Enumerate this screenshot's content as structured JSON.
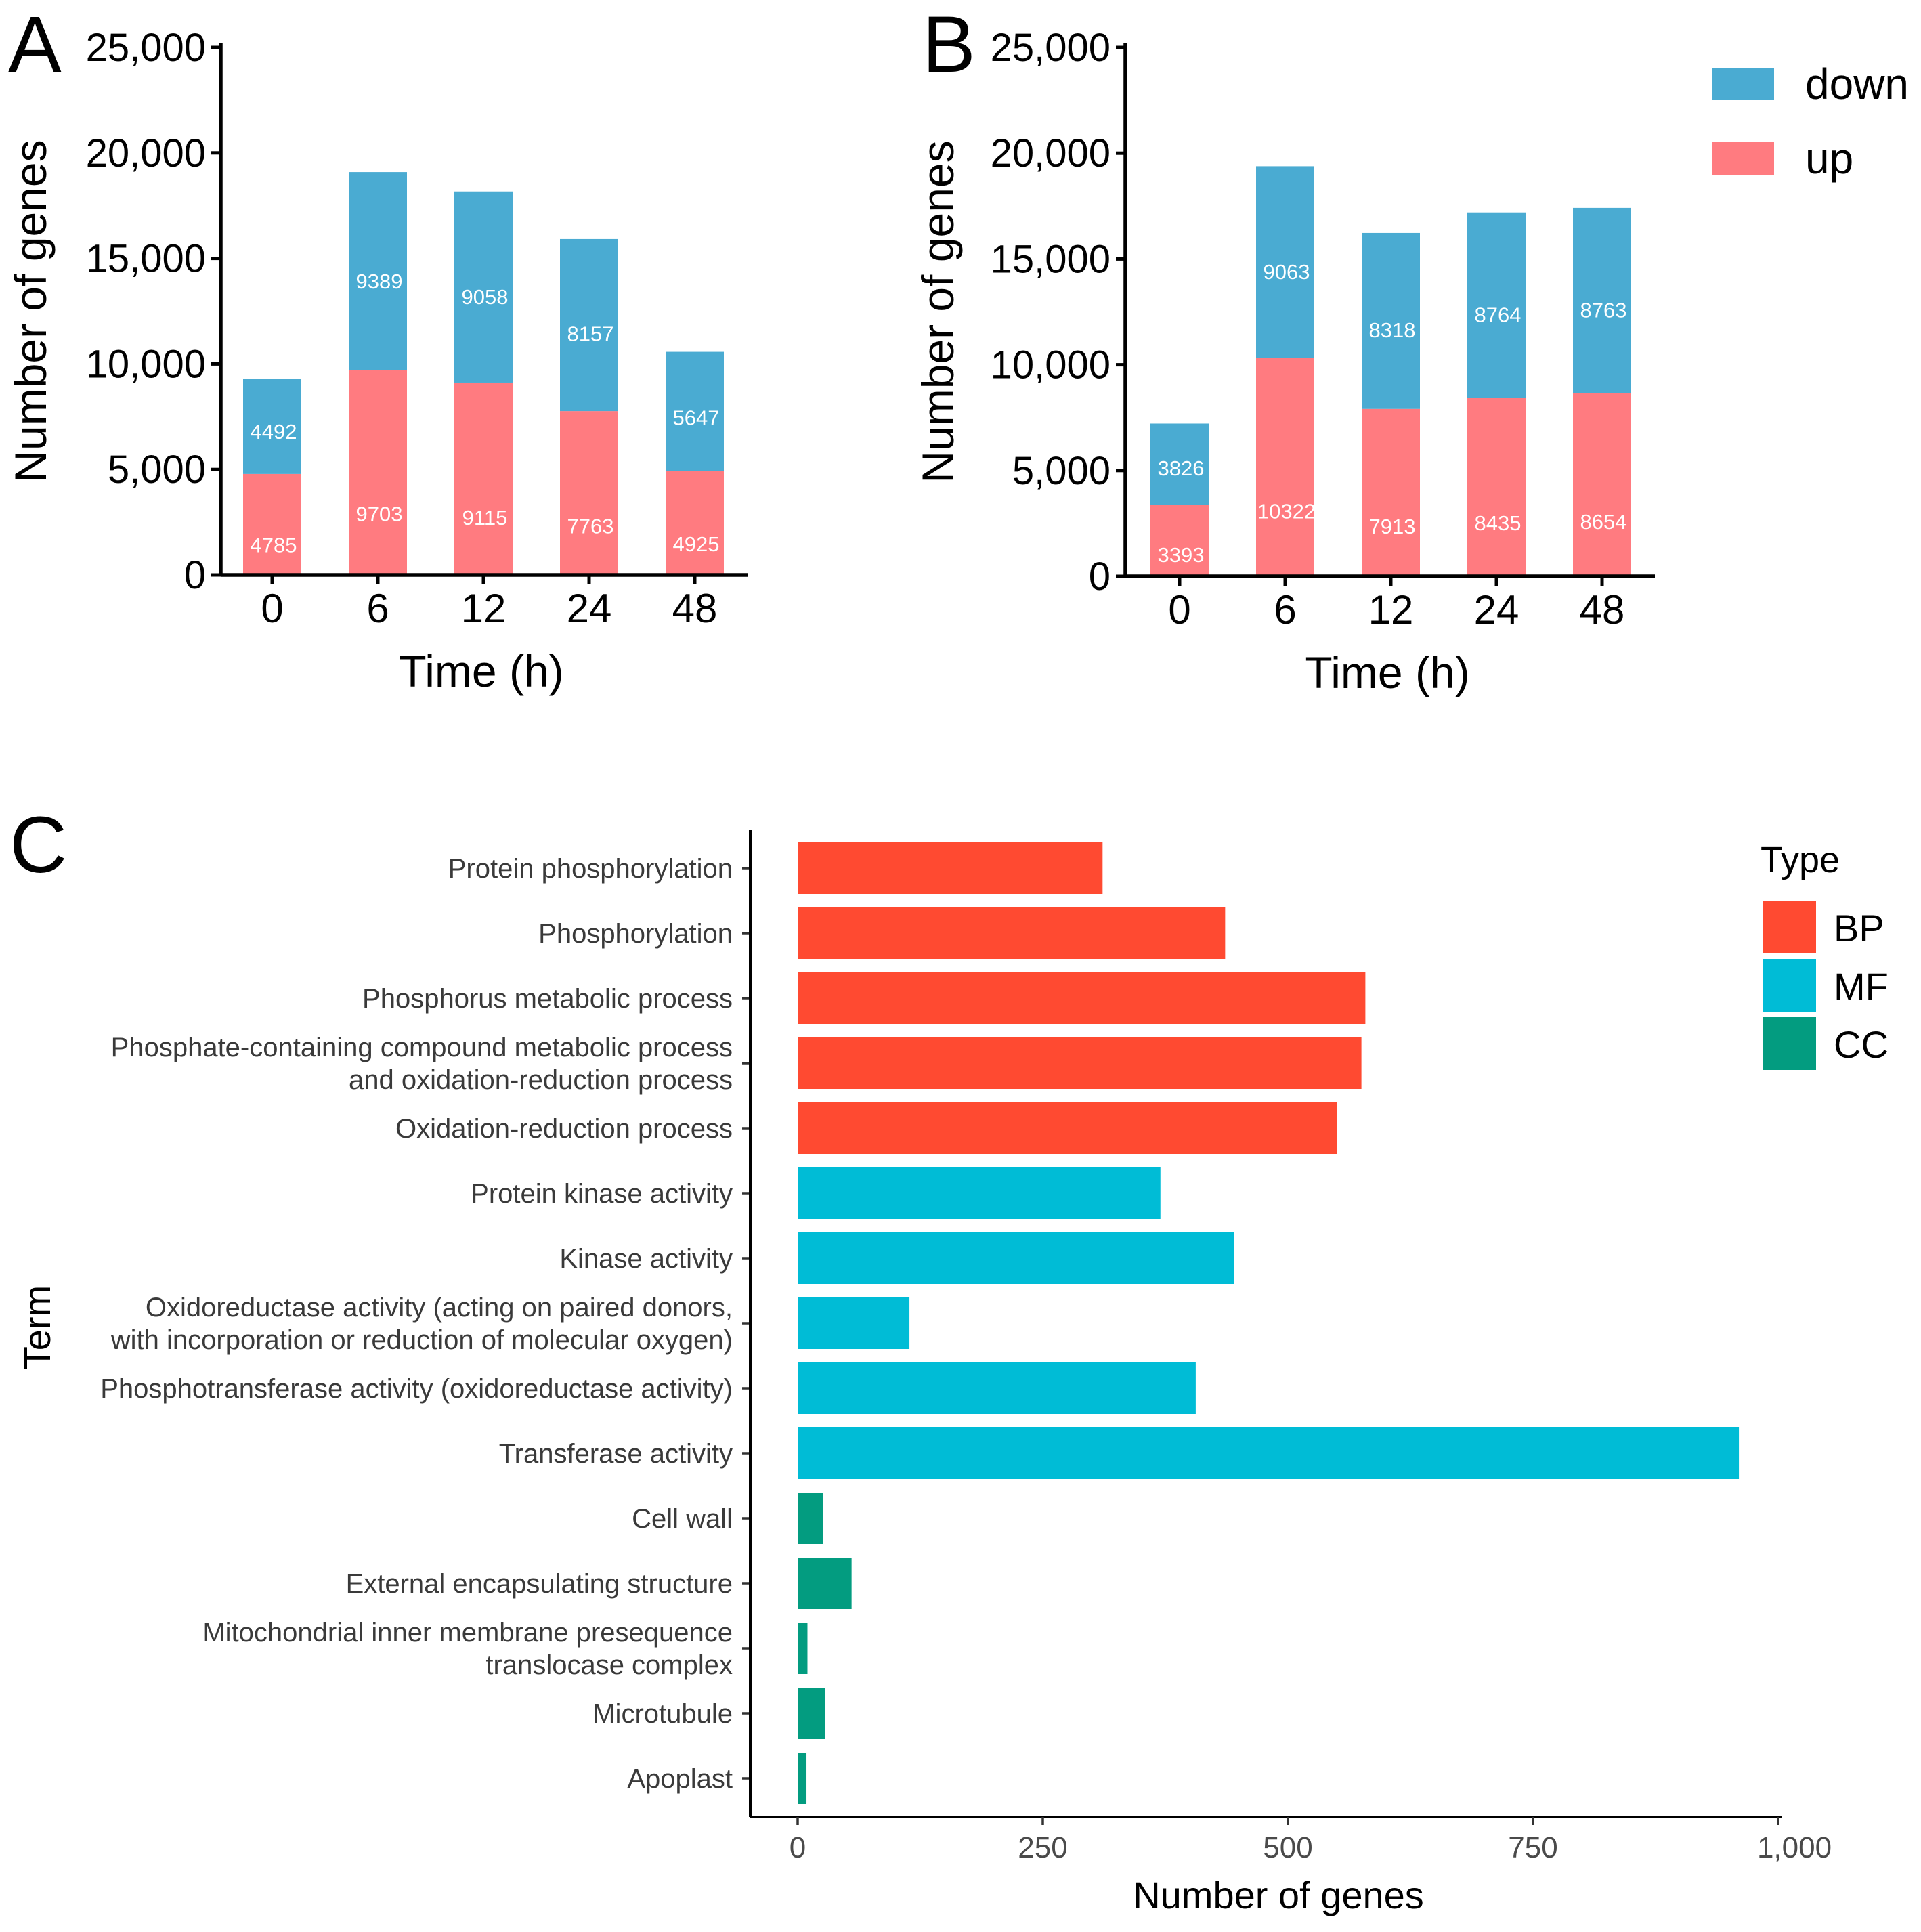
{
  "chart_data": [
    {
      "panel": "A",
      "type": "bar",
      "stacked": true,
      "categories": [
        "0",
        "6",
        "12",
        "24",
        "48"
      ],
      "series": [
        {
          "name": "up",
          "color": "#ff7b80",
          "values": [
            4785,
            9703,
            9115,
            7763,
            4925
          ]
        },
        {
          "name": "down",
          "color": "#4aabd2",
          "values": [
            4492,
            9389,
            9058,
            8157,
            5647
          ]
        }
      ],
      "ylim": [
        0,
        25000
      ],
      "yticks": [
        0,
        5000,
        10000,
        15000,
        20000,
        25000
      ],
      "ytick_labels": [
        "0",
        "5,000",
        "10,000",
        "15,000",
        "20,000",
        "25,000"
      ],
      "xlabel": "Time (h)",
      "ylabel": "Number of genes"
    },
    {
      "panel": "B",
      "type": "bar",
      "stacked": true,
      "categories": [
        "0",
        "6",
        "12",
        "24",
        "48"
      ],
      "series": [
        {
          "name": "up",
          "color": "#ff7b80",
          "values": [
            3393,
            10322,
            7913,
            8435,
            8654
          ]
        },
        {
          "name": "down",
          "color": "#4aabd2",
          "values": [
            3826,
            9063,
            8318,
            8764,
            8763
          ]
        }
      ],
      "ylim": [
        0,
        25000
      ],
      "yticks": [
        0,
        5000,
        10000,
        15000,
        20000,
        25000
      ],
      "ytick_labels": [
        "0",
        "5,000",
        "10,000",
        "15,000",
        "20,000",
        "25,000"
      ],
      "xlabel": "Time (h)",
      "ylabel": "Number of genes",
      "legend": {
        "placement": "top-right",
        "items": [
          {
            "name": "down",
            "color": "#4aabd2"
          },
          {
            "name": "up",
            "color": "#ff7b80"
          }
        ]
      }
    },
    {
      "panel": "C",
      "type": "bar",
      "orientation": "horizontal",
      "categories": [
        [
          "Protein phosphorylation"
        ],
        [
          "Phosphorylation"
        ],
        [
          "Phosphorus metabolic process"
        ],
        [
          "Phosphate-containing compound metabolic process",
          "and oxidation-reduction process"
        ],
        [
          "Oxidation-reduction process"
        ],
        [
          "Protein kinase activity"
        ],
        [
          "Kinase activity"
        ],
        [
          "Oxidoreductase activity (acting on paired donors,",
          "with incorporation or reduction of molecular oxygen)"
        ],
        [
          "Phosphotransferase activity (oxidoreductase activity)"
        ],
        [
          "Transferase activity"
        ],
        [
          "Cell wall"
        ],
        [
          "External encapsulating structure"
        ],
        [
          "Mitochondrial inner membrane presequence",
          "translocase complex"
        ],
        [
          "Microtubule"
        ],
        [
          "Apoplast"
        ]
      ],
      "values": [
        311,
        436,
        579,
        575,
        550,
        370,
        445,
        114,
        406,
        960,
        26,
        55,
        10,
        28,
        9
      ],
      "types": [
        "BP",
        "BP",
        "BP",
        "BP",
        "BP",
        "MF",
        "MF",
        "MF",
        "MF",
        "MF",
        "CC",
        "CC",
        "CC",
        "CC",
        "CC"
      ],
      "xlim": [
        0,
        1000
      ],
      "xticks": [
        0,
        250,
        500,
        750,
        1000
      ],
      "xtick_labels": [
        "0",
        "250",
        "500",
        "750",
        "1,000"
      ],
      "xlabel": "Number of genes",
      "ylabel": "Term",
      "legend": {
        "title": "Type",
        "placement": "top-right",
        "items": [
          {
            "name": "BP",
            "color": "#ff4a31"
          },
          {
            "name": "MF",
            "color": "#00bcd6"
          },
          {
            "name": "CC",
            "color": "#039c80"
          }
        ]
      }
    }
  ],
  "panel_labels": {
    "a": "A",
    "b": "B",
    "c": "C"
  }
}
